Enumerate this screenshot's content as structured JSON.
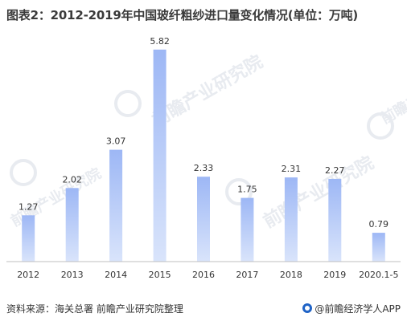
{
  "title": "图表2：2012-2019年中国玻纤粗纱进口量变化情况(单位：万吨)",
  "chart_data": {
    "type": "bar",
    "categories": [
      "2012",
      "2013",
      "2014",
      "2015",
      "2016",
      "2017",
      "2018",
      "2019",
      "2020.1-5"
    ],
    "values": [
      1.27,
      2.02,
      3.07,
      5.82,
      2.33,
      1.75,
      2.31,
      2.27,
      0.79
    ],
    "data_labels": [
      "1.27",
      "2.02",
      "3.07",
      "5.82",
      "2.33",
      "1.75",
      "2.31",
      "2.27",
      "0.79"
    ],
    "ylim": [
      0,
      6.3
    ],
    "grid": false,
    "bar_color_top": "#9db7f5",
    "bar_color_bottom": "#d9e4fb"
  },
  "footer": {
    "source": "资料来源：海关总署  前瞻产业研究院整理",
    "brand": "@前瞻经济学人APP"
  },
  "watermark": {
    "text": "前瞻产业研究院"
  }
}
